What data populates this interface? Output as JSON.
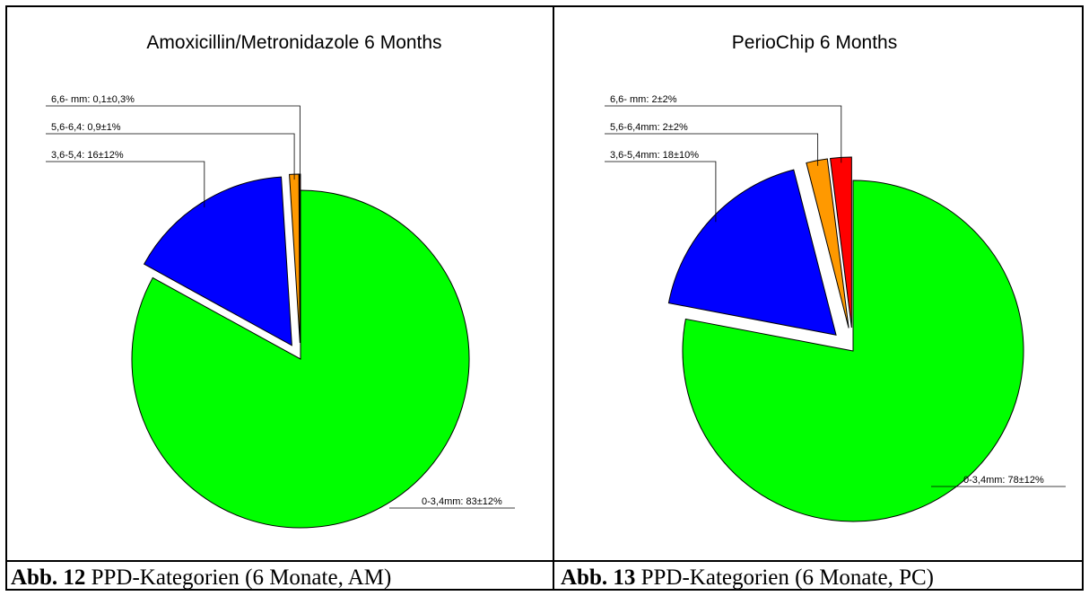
{
  "chart_data": [
    {
      "type": "pie",
      "title": "Amoxicillin/Metronidazole 6 Months",
      "slices": [
        {
          "label": "0-3,4mm: 83±12%",
          "value": 83.0,
          "color": "#00ff00",
          "exploded": false
        },
        {
          "label": "3,6-5,4: 16±12%",
          "value": 16.0,
          "color": "#0000ff",
          "exploded": true
        },
        {
          "label": "5,6-6,4: 0,9±1%",
          "value": 0.9,
          "color": "#ff9900",
          "exploded": true
        },
        {
          "label": "6,6- mm: 0,1±0,3%",
          "value": 0.1,
          "color": "#ff0000",
          "exploded": true
        }
      ],
      "caption": {
        "bold": "Abb. 12",
        "text": " PPD-Kategorien (6 Monate, AM)"
      }
    },
    {
      "type": "pie",
      "title": "PerioChip 6 Months",
      "slices": [
        {
          "label": "0-3,4mm: 78±12%",
          "value": 78.0,
          "color": "#00ff00",
          "exploded": false
        },
        {
          "label": "3,6-5,4mm: 18±10%",
          "value": 18.0,
          "color": "#0000ff",
          "exploded": true
        },
        {
          "label": "5,6-6,4mm: 2±2%",
          "value": 2.0,
          "color": "#ff9900",
          "exploded": true
        },
        {
          "label": "6,6- mm: 2±2%",
          "value": 2.0,
          "color": "#ff0000",
          "exploded": true
        }
      ],
      "caption": {
        "bold": "Abb. 13",
        "text": " PPD-Kategorien (6 Monate, PC)"
      }
    }
  ]
}
